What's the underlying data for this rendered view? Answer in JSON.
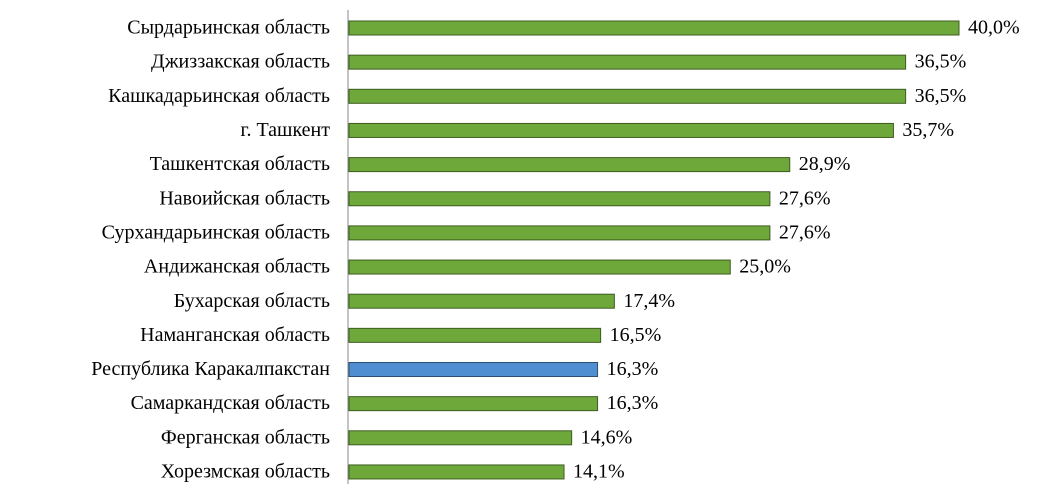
{
  "chart_data": {
    "type": "bar",
    "orientation": "horizontal",
    "categories": [
      "Сырдарьинская область",
      "Джиззакская область",
      "Кашкадарьинская область",
      "г. Ташкент",
      "Ташкентская область",
      "Навоийская область",
      "Сурхандарьинская область",
      "Андижанская область",
      "Бухарская область",
      "Наманганская область",
      "Республика Каракалпакстан",
      "Самаркандская область",
      "Ферганская область",
      "Хорезмская область"
    ],
    "values": [
      40.0,
      36.5,
      36.5,
      35.7,
      28.9,
      27.6,
      27.6,
      25.0,
      17.4,
      16.5,
      16.3,
      16.3,
      14.6,
      14.1
    ],
    "value_labels": [
      "40,0%",
      "36,5%",
      "36,5%",
      "35,7%",
      "28,9%",
      "27,6%",
      "27,6%",
      "25,0%",
      "17,4%",
      "16,5%",
      "16,3%",
      "16,3%",
      "14,6%",
      "14,1%"
    ],
    "colors": [
      "#6fa83a",
      "#6fa83a",
      "#6fa83a",
      "#6fa83a",
      "#6fa83a",
      "#6fa83a",
      "#6fa83a",
      "#6fa83a",
      "#6fa83a",
      "#6fa83a",
      "#4f8fd1",
      "#6fa83a",
      "#6fa83a",
      "#6fa83a"
    ]
  }
}
